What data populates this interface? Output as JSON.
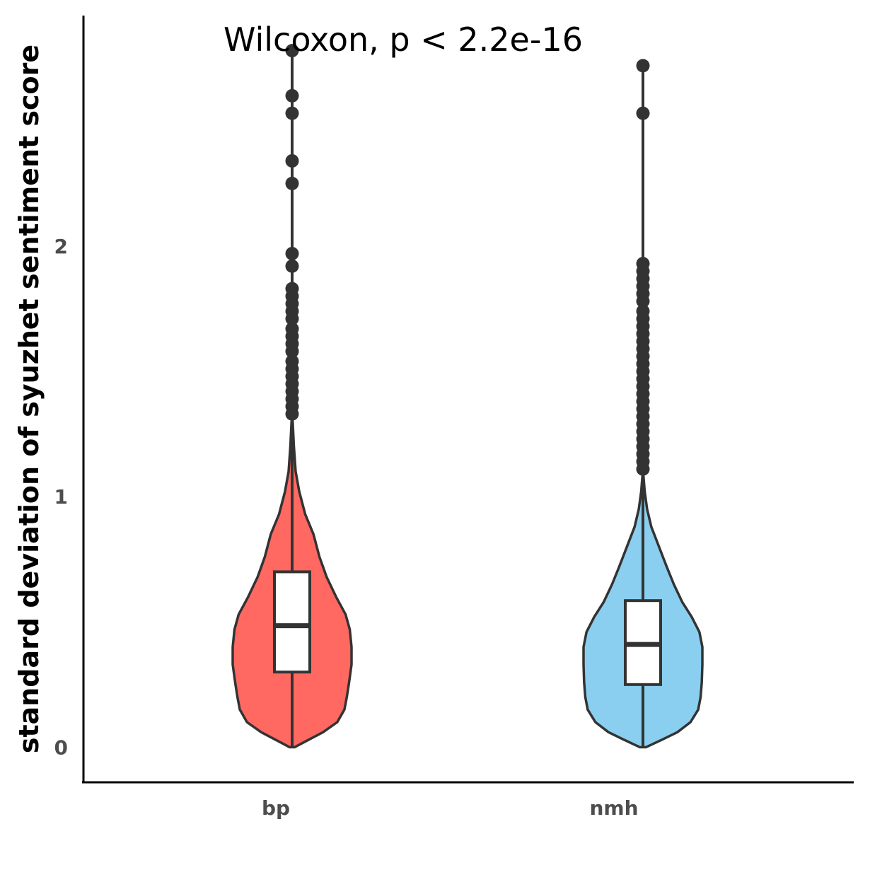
{
  "chart_data": {
    "type": "violin",
    "title": "",
    "annotation": "Wilcoxon, p < 2.2e-16",
    "xlabel": "",
    "ylabel": "standard deviation of syuzhet sentiment score",
    "ylim": [
      -0.14,
      2.92
    ],
    "y_ticks": [
      "0",
      "1",
      "2"
    ],
    "y_tick_values": [
      0,
      1,
      2
    ],
    "categories": [
      "bp",
      "nmh"
    ],
    "colors": {
      "bp": "#FF6961",
      "nmh": "#8ACFEF",
      "outline": "#333333",
      "box_fill": "#ffffff"
    },
    "series": [
      {
        "name": "bp",
        "min": 0,
        "q1": 0.3,
        "median": 0.485,
        "q3": 0.7,
        "whisker_high": 1.3,
        "outliers": [
          2.78,
          2.6,
          2.53,
          2.34,
          2.25,
          1.97,
          1.92,
          1.83,
          1.8,
          1.77,
          1.74,
          1.71,
          1.67,
          1.64,
          1.61,
          1.58,
          1.54,
          1.51,
          1.48,
          1.45,
          1.42,
          1.39,
          1.36,
          1.33
        ],
        "density": [
          [
            0.0,
            0.04
          ],
          [
            0.03,
            0.28
          ],
          [
            0.06,
            0.52
          ],
          [
            0.1,
            0.76
          ],
          [
            0.15,
            0.88
          ],
          [
            0.2,
            0.92
          ],
          [
            0.26,
            0.96
          ],
          [
            0.33,
            1.0
          ],
          [
            0.4,
            1.0
          ],
          [
            0.47,
            0.97
          ],
          [
            0.53,
            0.9
          ],
          [
            0.6,
            0.74
          ],
          [
            0.68,
            0.58
          ],
          [
            0.76,
            0.46
          ],
          [
            0.85,
            0.36
          ],
          [
            0.93,
            0.22
          ],
          [
            1.02,
            0.12
          ],
          [
            1.1,
            0.06
          ],
          [
            1.2,
            0.03
          ],
          [
            1.3,
            0.01
          ]
        ]
      },
      {
        "name": "nmh",
        "min": 0,
        "q1": 0.25,
        "median": 0.41,
        "q3": 0.585,
        "whisker_high": 1.08,
        "outliers": [
          2.72,
          2.53,
          1.93,
          1.9,
          1.87,
          1.84,
          1.81,
          1.78,
          1.74,
          1.71,
          1.68,
          1.65,
          1.62,
          1.59,
          1.56,
          1.53,
          1.5,
          1.47,
          1.44,
          1.41,
          1.38,
          1.35,
          1.32,
          1.29,
          1.26,
          1.23,
          1.2,
          1.17,
          1.14,
          1.11
        ],
        "density": [
          [
            0.0,
            0.05
          ],
          [
            0.03,
            0.32
          ],
          [
            0.06,
            0.58
          ],
          [
            0.1,
            0.8
          ],
          [
            0.15,
            0.93
          ],
          [
            0.2,
            0.97
          ],
          [
            0.26,
            0.99
          ],
          [
            0.33,
            1.0
          ],
          [
            0.4,
            1.0
          ],
          [
            0.46,
            0.95
          ],
          [
            0.52,
            0.82
          ],
          [
            0.58,
            0.66
          ],
          [
            0.65,
            0.52
          ],
          [
            0.72,
            0.4
          ],
          [
            0.8,
            0.27
          ],
          [
            0.88,
            0.14
          ],
          [
            0.95,
            0.07
          ],
          [
            1.02,
            0.03
          ],
          [
            1.08,
            0.01
          ]
        ]
      }
    ]
  }
}
